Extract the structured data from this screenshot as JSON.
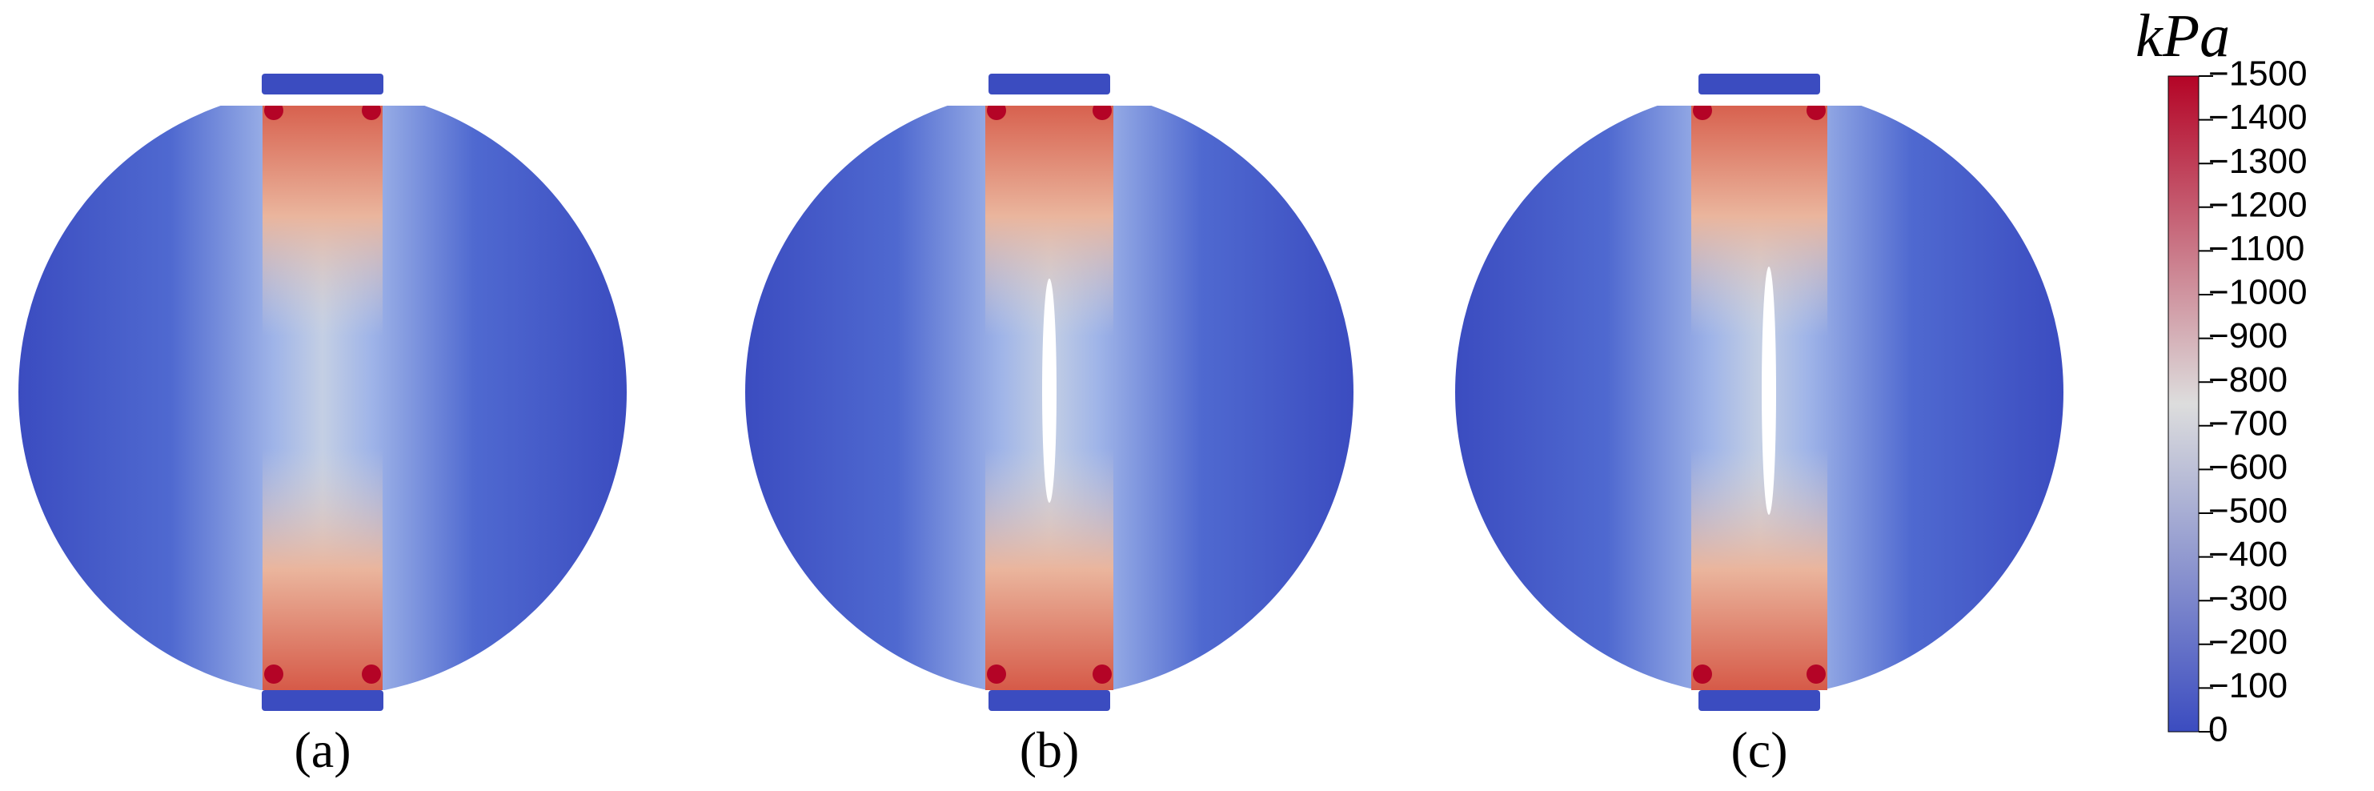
{
  "panels": [
    {
      "label": "(a)",
      "crack": false
    },
    {
      "label": "(b)",
      "crack": true
    },
    {
      "label": "(c)",
      "crack": true
    }
  ],
  "colorbar": {
    "unit": "kPa",
    "lim": [
      -1500,
      0
    ],
    "colors": [
      "#b40426",
      "#dddddd",
      "#3b4cc0"
    ],
    "ticks": [
      {
        "value": -1500,
        "label": "−1500"
      },
      {
        "value": -1400,
        "label": "−1400"
      },
      {
        "value": -1300,
        "label": "−1300"
      },
      {
        "value": -1200,
        "label": "−1200"
      },
      {
        "value": -1100,
        "label": "−1100"
      },
      {
        "value": -1000,
        "label": "−1000"
      },
      {
        "value": -900,
        "label": "−900"
      },
      {
        "value": -800,
        "label": "−800"
      },
      {
        "value": -700,
        "label": "−700"
      },
      {
        "value": -600,
        "label": "−600"
      },
      {
        "value": -500,
        "label": "−500"
      },
      {
        "value": -400,
        "label": "−400"
      },
      {
        "value": -300,
        "label": "−300"
      },
      {
        "value": -200,
        "label": "−200"
      },
      {
        "value": -100,
        "label": "−100"
      },
      0
    ]
  }
}
